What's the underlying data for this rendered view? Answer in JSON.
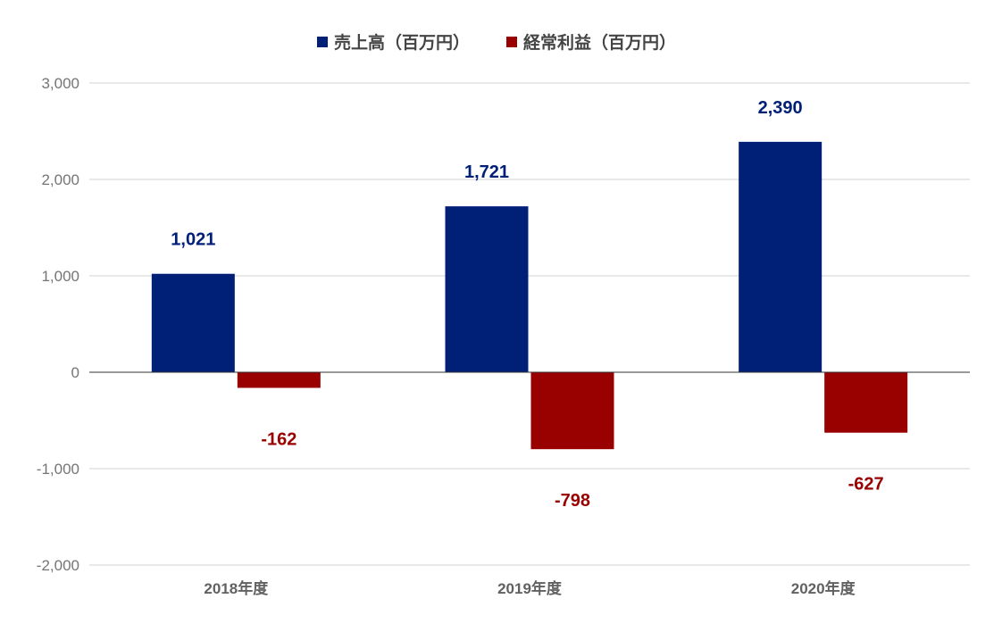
{
  "chart_data": {
    "type": "bar",
    "title": "",
    "xlabel": "",
    "ylabel": "",
    "categories": [
      "2018年度",
      "2019年度",
      "2020年度"
    ],
    "series": [
      {
        "name": "売上高（百万円）",
        "color": "#002078",
        "values": [
          1021,
          1721,
          2390
        ],
        "labels": [
          "1,021",
          "1,721",
          "2,390"
        ]
      },
      {
        "name": "経常利益（百万円）",
        "color": "#990000",
        "values": [
          -162,
          -798,
          -627
        ],
        "labels": [
          "-162",
          "-798",
          "-627"
        ]
      }
    ],
    "ylim": [
      -2000,
      3000
    ],
    "yticks": [
      3000,
      2000,
      1000,
      0,
      -1000,
      -2000
    ],
    "ytick_labels": [
      "3,000",
      "2,000",
      "1,000",
      "0",
      "-1,000",
      "-2,000"
    ],
    "grid": true,
    "legend_position": "top-center"
  }
}
